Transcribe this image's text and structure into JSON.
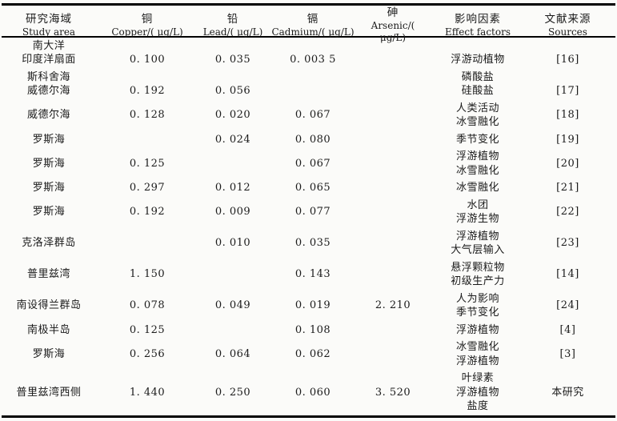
{
  "table": {
    "header": {
      "columns": [
        {
          "cn": "研究海域",
          "en": "Study area"
        },
        {
          "cn": "铜",
          "en": "Copper/( μg/L)"
        },
        {
          "cn": "铅",
          "en": "Lead/( μg/L)"
        },
        {
          "cn": "镉",
          "en": "Cadmium/( μg/L)"
        },
        {
          "cn": "砷",
          "en": "Arsenic/( μg/L)"
        },
        {
          "cn": "影响因素",
          "en": "Effect factors"
        },
        {
          "cn": "文献来源",
          "en": "Sources"
        }
      ]
    },
    "rows": [
      {
        "area": [
          "南大洋",
          "印度洋扇面"
        ],
        "cu": [
          "",
          "0. 100"
        ],
        "pb": [
          "",
          "0. 035"
        ],
        "cd": [
          "",
          "0. 003 5"
        ],
        "as": [],
        "effects": [
          "",
          "浮游动植物"
        ],
        "source": [
          "",
          "[16]"
        ]
      },
      {
        "area": [
          "斯科舍海",
          "威德尔海"
        ],
        "cu": [
          "",
          "0. 192"
        ],
        "pb": [
          "",
          "0. 056"
        ],
        "cd": [],
        "as": [],
        "effects": [
          "磷酸盐",
          "硅酸盐"
        ],
        "source": [
          "",
          "[17]"
        ]
      },
      {
        "area": [
          "威德尔海"
        ],
        "cu": [
          "0. 128"
        ],
        "pb": [
          "0. 020"
        ],
        "cd": [
          "0. 067"
        ],
        "as": [],
        "effects": [
          "人类活动",
          "冰雪融化"
        ],
        "source": [
          "[18]"
        ]
      },
      {
        "area": [
          "罗斯海"
        ],
        "cu": [],
        "pb": [
          "0. 024"
        ],
        "cd": [
          "0. 080"
        ],
        "as": [],
        "effects": [
          "季节变化"
        ],
        "source": [
          "[19]"
        ]
      },
      {
        "area": [
          "罗斯海"
        ],
        "cu": [
          "0. 125"
        ],
        "pb": [],
        "cd": [
          "0. 067"
        ],
        "as": [],
        "effects": [
          "浮游植物",
          "冰雪融化"
        ],
        "source": [
          "[20]"
        ]
      },
      {
        "area": [
          "罗斯海"
        ],
        "cu": [
          "0. 297"
        ],
        "pb": [
          "0. 012"
        ],
        "cd": [
          "0. 065"
        ],
        "as": [],
        "effects": [
          "冰雪融化"
        ],
        "source": [
          "[21]"
        ]
      },
      {
        "area": [
          "罗斯海"
        ],
        "cu": [
          "0. 192"
        ],
        "pb": [
          "0. 009"
        ],
        "cd": [
          "0. 077"
        ],
        "as": [],
        "effects": [
          "水团",
          "浮游生物"
        ],
        "source": [
          "[22]"
        ]
      },
      {
        "area": [
          "克洛泽群岛"
        ],
        "cu": [],
        "pb": [
          "0. 010"
        ],
        "cd": [
          "0. 035"
        ],
        "as": [],
        "effects": [
          "浮游植物",
          "大气层输入"
        ],
        "source": [
          "[23]"
        ]
      },
      {
        "area": [
          "普里兹湾"
        ],
        "cu": [
          "1. 150"
        ],
        "pb": [],
        "cd": [
          "0. 143"
        ],
        "as": [],
        "effects": [
          "悬浮颗粒物",
          "初级生产力"
        ],
        "source": [
          "[14]"
        ]
      },
      {
        "area": [
          "南设得兰群岛"
        ],
        "cu": [
          "0. 078"
        ],
        "pb": [
          "0. 049"
        ],
        "cd": [
          "0. 019"
        ],
        "as": [
          "2. 210"
        ],
        "effects": [
          "人为影响",
          "季节变化"
        ],
        "source": [
          "[24]"
        ]
      },
      {
        "area": [
          "南极半岛"
        ],
        "cu": [
          "0. 125"
        ],
        "pb": [],
        "cd": [
          "0. 108"
        ],
        "as": [],
        "effects": [
          "浮游植物"
        ],
        "source": [
          "[4]"
        ]
      },
      {
        "area": [
          "罗斯海"
        ],
        "cu": [
          "0. 256"
        ],
        "pb": [
          "0. 064"
        ],
        "cd": [
          "0. 062"
        ],
        "as": [],
        "effects": [
          "冰雪融化",
          "浮游植物"
        ],
        "source": [
          "[3]"
        ]
      },
      {
        "area": [
          "普里兹湾西侧"
        ],
        "cu": [
          "1. 440"
        ],
        "pb": [
          "0. 250"
        ],
        "cd": [
          "0. 060"
        ],
        "as": [
          "3. 520"
        ],
        "effects": [
          "叶绿素",
          "浮游植物",
          "盐度"
        ],
        "source": [
          "本研究"
        ]
      }
    ]
  }
}
